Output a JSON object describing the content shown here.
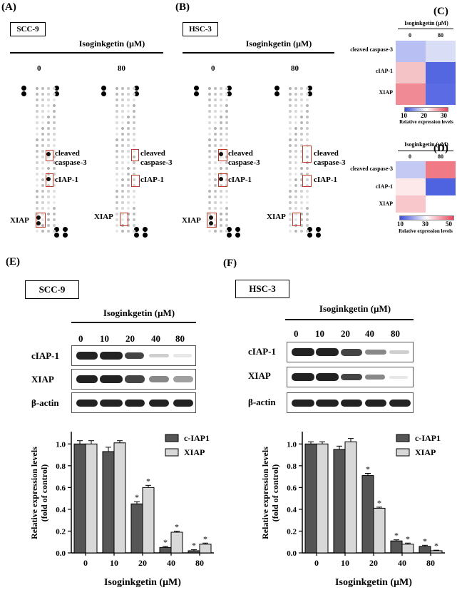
{
  "panels": {
    "a": "(A)",
    "b": "(B)",
    "c": "(C)",
    "d": "(D)",
    "e": "(E)",
    "f": "(F)"
  },
  "cell_lines": {
    "scc9": "SCC-9",
    "hsc3": "HSC-3"
  },
  "treatment_label": "Isoginkgetin (μM)",
  "array_doses": [
    "0",
    "80"
  ],
  "array_labels": {
    "cleaved_line1": "cleaved",
    "cleaved_line2": "caspase-3",
    "ciap1": "cIAP-1",
    "xiap": "XIAP"
  },
  "heatmap_c": {
    "title": "Isoginkgetin (μM)",
    "columns": [
      "0",
      "80"
    ],
    "rows": [
      "cleaved caspase-3",
      "cIAP-1",
      "XIAP"
    ],
    "cells": [
      [
        "#b7bff3",
        "#d9ddf5"
      ],
      [
        "#f3c3c6",
        "#5466e0"
      ],
      [
        "#f08a95",
        "#5a6be3"
      ]
    ],
    "scale_ticks": [
      "10",
      "20",
      "30"
    ],
    "scale_label": "Relative expression levels"
  },
  "heatmap_d": {
    "title": "Isoginkgetin (μM)",
    "columns": [
      "0",
      "80"
    ],
    "rows": [
      "cleaved caspase-3",
      "cIAP-1",
      "XIAP"
    ],
    "cells": [
      [
        "#c3c9f3",
        "#f07a86"
      ],
      [
        "#fde8ea",
        "#4f62df"
      ],
      [
        "#f8c7cc",
        "#ffffff"
      ]
    ],
    "scale_ticks": [
      "10",
      "30",
      "50"
    ],
    "scale_label": "Relative expression levels"
  },
  "western": {
    "doses": [
      "0",
      "10",
      "20",
      "40",
      "80"
    ],
    "rows": [
      "cIAP-1",
      "XIAP",
      "β-actin"
    ]
  },
  "chart_data": [
    {
      "type": "bar",
      "panel": "E",
      "categories": [
        "0",
        "10",
        "20",
        "40",
        "80"
      ],
      "series": [
        {
          "name": "c-IAP1",
          "values": [
            1.0,
            0.93,
            0.45,
            0.05,
            0.02
          ],
          "errors": [
            0.03,
            0.04,
            0.02,
            0.01,
            0.01
          ],
          "significant": [
            false,
            false,
            true,
            true,
            true
          ]
        },
        {
          "name": "XIAP",
          "values": [
            1.0,
            1.01,
            0.6,
            0.19,
            0.08
          ],
          "errors": [
            0.03,
            0.02,
            0.02,
            0.01,
            0.01
          ],
          "significant": [
            false,
            false,
            true,
            true,
            true
          ]
        }
      ],
      "ylabel_line1": "Relative expression levels",
      "ylabel_line2": "(fold of control)",
      "xlabel": "Isoginkgetin (μM)",
      "ylim": [
        0,
        1.1
      ],
      "yticks": [
        "0.0",
        "0.2",
        "0.4",
        "0.6",
        "0.8",
        "1.0"
      ],
      "sig_marker": "*",
      "legend": "top-right"
    },
    {
      "type": "bar",
      "panel": "F",
      "categories": [
        "0",
        "10",
        "20",
        "40",
        "80"
      ],
      "series": [
        {
          "name": "c-IAP1",
          "values": [
            1.0,
            0.95,
            0.71,
            0.11,
            0.06
          ],
          "errors": [
            0.02,
            0.03,
            0.02,
            0.01,
            0.01
          ],
          "significant": [
            false,
            false,
            true,
            true,
            true
          ]
        },
        {
          "name": "XIAP",
          "values": [
            1.0,
            1.02,
            0.41,
            0.08,
            0.02
          ],
          "errors": [
            0.02,
            0.03,
            0.01,
            0.01,
            0.005
          ],
          "significant": [
            false,
            false,
            true,
            true,
            true
          ]
        }
      ],
      "ylabel_line1": "Relative expression levels",
      "ylabel_line2": "(fold of control)",
      "xlabel": "Isoginkgetin (μM)",
      "ylim": [
        0,
        1.1
      ],
      "yticks": [
        "0.0",
        "0.2",
        "0.4",
        "0.6",
        "0.8",
        "1.0"
      ],
      "sig_marker": "*",
      "legend": "top-right"
    }
  ]
}
